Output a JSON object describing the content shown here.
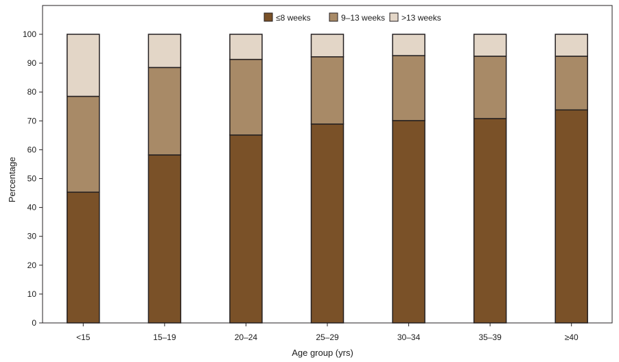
{
  "chart_data": {
    "type": "bar",
    "stacked": true,
    "categories": [
      "<15",
      "15–19",
      "20–24",
      "25–29",
      "30–34",
      "35–39",
      "≥40"
    ],
    "series": [
      {
        "name": "≤8 weeks",
        "color": "#7a5128",
        "values": [
          45.3,
          58.2,
          65.1,
          68.9,
          70.1,
          70.8,
          73.8
        ]
      },
      {
        "name": "9–13 weeks",
        "color": "#a88a67",
        "values": [
          33.2,
          30.3,
          26.2,
          23.3,
          22.5,
          21.6,
          18.6
        ]
      },
      {
        "name": ">13 weeks",
        "color": "#e3d6c7",
        "values": [
          21.5,
          11.5,
          8.7,
          7.8,
          7.4,
          7.6,
          7.6
        ]
      }
    ],
    "xlabel": "Age group (yrs)",
    "ylabel": "Percentage",
    "ylim": [
      0,
      100
    ],
    "yticks": [
      0,
      10,
      20,
      30,
      40,
      50,
      60,
      70,
      80,
      90,
      100
    ],
    "legend_position": "top-center",
    "grid": false
  }
}
